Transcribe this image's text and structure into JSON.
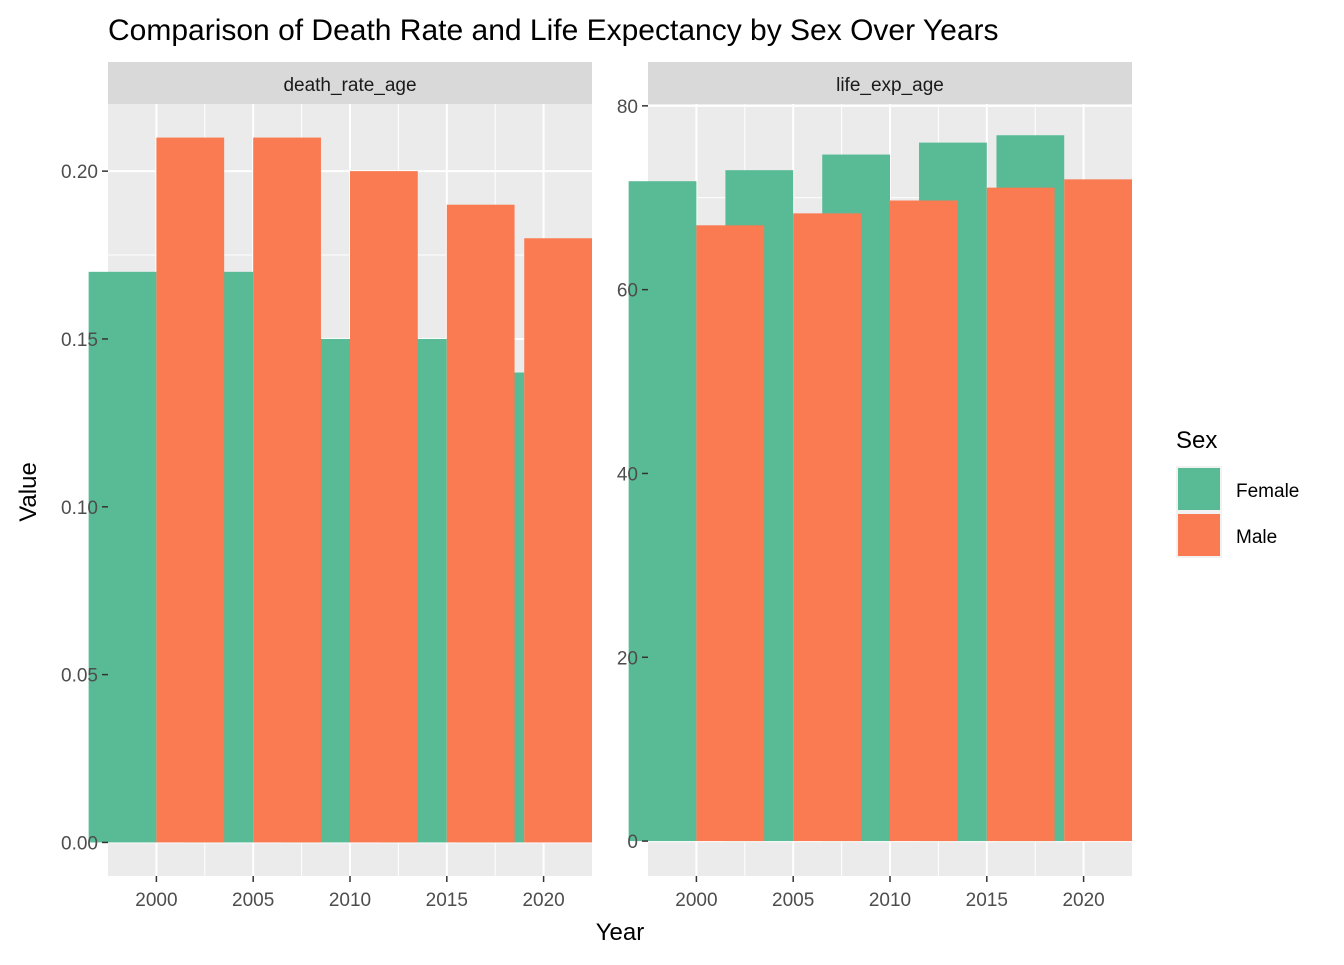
{
  "title": "Comparison of Death Rate and Life Expectancy by Sex Over Years",
  "xlabel": "Year",
  "ylabel": "Value",
  "legend": {
    "title": "Sex",
    "items": [
      {
        "label": "Female",
        "color": "#58BB95"
      },
      {
        "label": "Male",
        "color": "#FA7A52"
      }
    ]
  },
  "chart_data": [
    {
      "type": "bar",
      "facet": "death_rate_age",
      "categories": [
        "2000",
        "2005",
        "2010",
        "2015",
        "2020"
      ],
      "x": [
        2000,
        2005,
        2010,
        2015,
        2019
      ],
      "xticks": [
        2000,
        2005,
        2010,
        2015,
        2020
      ],
      "yticks": [
        0.0,
        0.05,
        0.1,
        0.15,
        0.2
      ],
      "ytick_labels": [
        "0.00",
        "0.05",
        "0.10",
        "0.15",
        "0.20"
      ],
      "ylim": [
        -0.01,
        0.22
      ],
      "series": [
        {
          "name": "Female",
          "values": [
            0.17,
            0.17,
            0.15,
            0.15,
            0.14
          ]
        },
        {
          "name": "Male",
          "values": [
            0.21,
            0.21,
            0.2,
            0.19,
            0.18
          ]
        }
      ]
    },
    {
      "type": "bar",
      "facet": "life_exp_age",
      "categories": [
        "2000",
        "2005",
        "2010",
        "2015",
        "2020"
      ],
      "x": [
        2000,
        2005,
        2010,
        2015,
        2019
      ],
      "xticks": [
        2000,
        2005,
        2010,
        2015,
        2020
      ],
      "yticks": [
        0,
        20,
        40,
        60,
        80
      ],
      "ytick_labels": [
        "0",
        "20",
        "40",
        "60",
        "80"
      ],
      "ylim": [
        -3.8,
        80.2
      ],
      "series": [
        {
          "name": "Female",
          "values": [
            71.8,
            73.0,
            74.7,
            76.0,
            76.8
          ]
        },
        {
          "name": "Male",
          "values": [
            67.0,
            68.3,
            69.7,
            71.1,
            72.0
          ]
        }
      ]
    }
  ]
}
